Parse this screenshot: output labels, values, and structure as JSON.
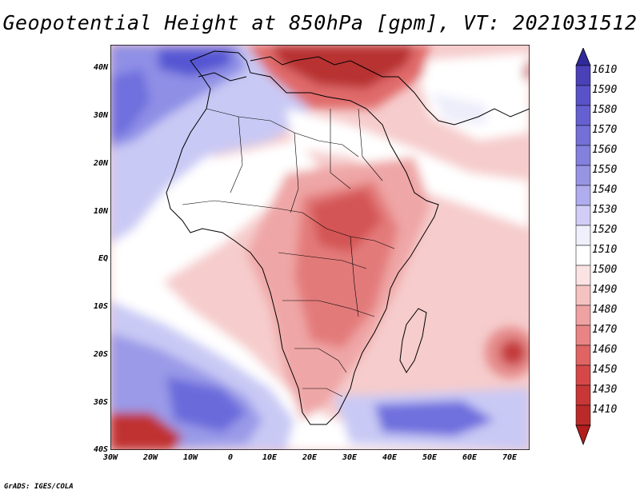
{
  "title": "Geopotential Height at 850hPa [gpm], VT: 2021031512",
  "footer": "GrADS: IGES/COLA",
  "lat_labels": [
    "40N",
    "30N",
    "20N",
    "10N",
    "EQ",
    "10S",
    "20S",
    "30S",
    "40S"
  ],
  "lon_labels": [
    "30W",
    "20W",
    "10W",
    "0",
    "10E",
    "20E",
    "30E",
    "40E",
    "50E",
    "60E",
    "70E"
  ],
  "legend": {
    "levels": [
      "1610",
      "1590",
      "1580",
      "1570",
      "1560",
      "1550",
      "1540",
      "1530",
      "1520",
      "1510",
      "1500",
      "1490",
      "1480",
      "1470",
      "1460",
      "1450",
      "1430",
      "1410"
    ],
    "colors": {
      "top_arrow": "#3b2fa0",
      "bottom_arrow": "#b31d1d"
    }
  },
  "field_colors": {
    "deep_blue": "#5353d1",
    "mid_blue": "#8e8ee5",
    "light_blue": "#c5c5f3",
    "white": "#ffffff",
    "pale_red": "#f7d2d2",
    "light_red": "#f0a8a8",
    "mid_red": "#e07474",
    "deep_red": "#b82828"
  }
}
